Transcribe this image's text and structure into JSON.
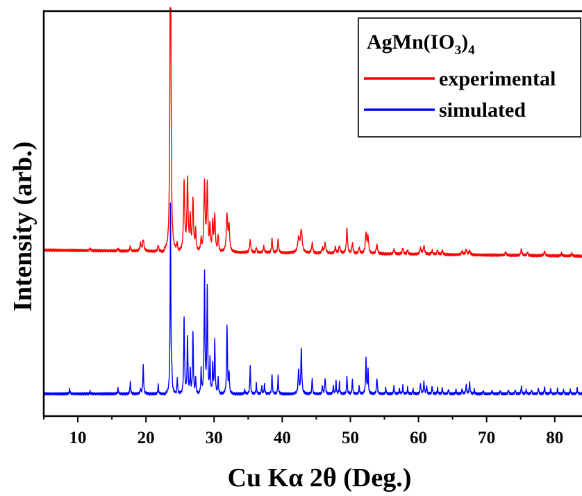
{
  "chart_data": {
    "type": "line",
    "title": "",
    "xlabel": "Cu Kα 2θ (Deg.)",
    "ylabel": "Intensity (arb.)",
    "xlim": [
      5,
      84
    ],
    "ylim": [
      0,
      1
    ],
    "xticks": [
      10,
      20,
      30,
      40,
      50,
      60,
      70,
      80
    ],
    "y_tick_labels": false,
    "grid": false,
    "legend": {
      "placement": "top-right",
      "title_main": "AgMn(IO",
      "title_sub1": "3",
      "title_mid": ")",
      "title_sub2": "4"
    },
    "series": [
      {
        "name": "experimental",
        "color": "#ff0000",
        "baseline": 0.41,
        "end_baseline": 0.395,
        "peaks": [
          [
            11.8,
            0.006,
            0.08
          ],
          [
            15.9,
            0.006,
            0.08
          ],
          [
            17.7,
            0.012,
            0.08
          ],
          [
            19.2,
            0.018,
            0.1
          ],
          [
            19.6,
            0.028,
            0.12
          ],
          [
            21.8,
            0.015,
            0.1
          ],
          [
            23.6,
            1.0,
            0.08
          ],
          [
            24.6,
            0.02,
            0.08
          ],
          [
            25.6,
            0.17,
            0.1
          ],
          [
            26.1,
            0.175,
            0.1
          ],
          [
            26.5,
            0.08,
            0.08
          ],
          [
            26.9,
            0.13,
            0.1
          ],
          [
            27.3,
            0.05,
            0.08
          ],
          [
            28.1,
            0.03,
            0.08
          ],
          [
            28.6,
            0.17,
            0.1
          ],
          [
            29.0,
            0.16,
            0.1
          ],
          [
            29.4,
            0.06,
            0.08
          ],
          [
            29.8,
            0.07,
            0.08
          ],
          [
            30.1,
            0.09,
            0.1
          ],
          [
            30.6,
            0.04,
            0.08
          ],
          [
            31.9,
            0.09,
            0.12
          ],
          [
            32.2,
            0.06,
            0.1
          ],
          [
            35.3,
            0.03,
            0.1
          ],
          [
            36.2,
            0.012,
            0.08
          ],
          [
            37.3,
            0.015,
            0.1
          ],
          [
            38.5,
            0.035,
            0.08
          ],
          [
            39.4,
            0.035,
            0.08
          ],
          [
            42.4,
            0.035,
            0.15
          ],
          [
            42.8,
            0.055,
            0.15
          ],
          [
            44.4,
            0.025,
            0.1
          ],
          [
            45.9,
            0.012,
            0.1
          ],
          [
            46.3,
            0.025,
            0.12
          ],
          [
            47.8,
            0.015,
            0.1
          ],
          [
            48.4,
            0.018,
            0.12
          ],
          [
            49.5,
            0.06,
            0.1
          ],
          [
            50.3,
            0.025,
            0.1
          ],
          [
            51.3,
            0.015,
            0.1
          ],
          [
            52.3,
            0.05,
            0.12
          ],
          [
            52.6,
            0.04,
            0.1
          ],
          [
            53.9,
            0.022,
            0.12
          ],
          [
            56.4,
            0.012,
            0.1
          ],
          [
            57.7,
            0.015,
            0.1
          ],
          [
            58.4,
            0.01,
            0.1
          ],
          [
            60.3,
            0.015,
            0.12
          ],
          [
            60.8,
            0.02,
            0.12
          ],
          [
            62.0,
            0.01,
            0.1
          ],
          [
            62.8,
            0.01,
            0.1
          ],
          [
            63.5,
            0.01,
            0.1
          ],
          [
            66.4,
            0.008,
            0.12
          ],
          [
            67.0,
            0.012,
            0.12
          ],
          [
            67.5,
            0.01,
            0.12
          ],
          [
            72.8,
            0.007,
            0.12
          ],
          [
            75.1,
            0.015,
            0.1
          ],
          [
            76.0,
            0.007,
            0.1
          ],
          [
            78.5,
            0.01,
            0.12
          ],
          [
            81.0,
            0.006,
            0.1
          ],
          [
            82.5,
            0.006,
            0.1
          ]
        ]
      },
      {
        "name": "simulated",
        "color": "#0000ff",
        "baseline": 0.055,
        "end_baseline": 0.055,
        "peaks": [
          [
            8.8,
            0.012,
            0.06
          ],
          [
            11.8,
            0.006,
            0.06
          ],
          [
            15.9,
            0.014,
            0.06
          ],
          [
            17.7,
            0.03,
            0.06
          ],
          [
            19.2,
            0.012,
            0.06
          ],
          [
            19.6,
            0.07,
            0.07
          ],
          [
            21.8,
            0.022,
            0.06
          ],
          [
            23.6,
            0.47,
            0.06
          ],
          [
            23.8,
            0.04,
            0.05
          ],
          [
            24.6,
            0.042,
            0.06
          ],
          [
            25.6,
            0.19,
            0.07
          ],
          [
            26.1,
            0.14,
            0.07
          ],
          [
            26.5,
            0.06,
            0.06
          ],
          [
            26.9,
            0.15,
            0.07
          ],
          [
            27.3,
            0.04,
            0.06
          ],
          [
            28.1,
            0.06,
            0.06
          ],
          [
            28.6,
            0.295,
            0.07
          ],
          [
            29.0,
            0.26,
            0.07
          ],
          [
            29.4,
            0.08,
            0.06
          ],
          [
            29.8,
            0.07,
            0.06
          ],
          [
            30.1,
            0.13,
            0.07
          ],
          [
            30.6,
            0.04,
            0.06
          ],
          [
            31.9,
            0.17,
            0.07
          ],
          [
            32.2,
            0.05,
            0.06
          ],
          [
            34.5,
            0.01,
            0.06
          ],
          [
            35.3,
            0.07,
            0.06
          ],
          [
            36.2,
            0.025,
            0.06
          ],
          [
            37.0,
            0.02,
            0.06
          ],
          [
            37.4,
            0.025,
            0.06
          ],
          [
            38.5,
            0.05,
            0.06
          ],
          [
            39.4,
            0.045,
            0.06
          ],
          [
            42.4,
            0.06,
            0.08
          ],
          [
            42.8,
            0.11,
            0.08
          ],
          [
            44.4,
            0.04,
            0.06
          ],
          [
            45.9,
            0.02,
            0.06
          ],
          [
            46.3,
            0.04,
            0.07
          ],
          [
            47.5,
            0.02,
            0.06
          ],
          [
            47.9,
            0.03,
            0.06
          ],
          [
            48.4,
            0.028,
            0.06
          ],
          [
            49.5,
            0.045,
            0.06
          ],
          [
            50.3,
            0.035,
            0.06
          ],
          [
            51.3,
            0.02,
            0.06
          ],
          [
            52.3,
            0.085,
            0.07
          ],
          [
            52.6,
            0.06,
            0.06
          ],
          [
            53.9,
            0.04,
            0.07
          ],
          [
            55.2,
            0.015,
            0.06
          ],
          [
            56.4,
            0.02,
            0.06
          ],
          [
            57.2,
            0.012,
            0.06
          ],
          [
            57.7,
            0.02,
            0.06
          ],
          [
            58.4,
            0.015,
            0.06
          ],
          [
            59.2,
            0.012,
            0.06
          ],
          [
            60.3,
            0.025,
            0.07
          ],
          [
            60.8,
            0.03,
            0.07
          ],
          [
            61.2,
            0.02,
            0.06
          ],
          [
            62.0,
            0.02,
            0.06
          ],
          [
            62.8,
            0.015,
            0.06
          ],
          [
            63.5,
            0.015,
            0.06
          ],
          [
            64.4,
            0.012,
            0.06
          ],
          [
            65.5,
            0.01,
            0.06
          ],
          [
            66.4,
            0.012,
            0.06
          ],
          [
            67.0,
            0.022,
            0.07
          ],
          [
            67.5,
            0.028,
            0.07
          ],
          [
            68.2,
            0.01,
            0.06
          ],
          [
            69.5,
            0.008,
            0.06
          ],
          [
            70.8,
            0.008,
            0.06
          ],
          [
            72.0,
            0.008,
            0.06
          ],
          [
            73.2,
            0.01,
            0.06
          ],
          [
            74.2,
            0.01,
            0.06
          ],
          [
            75.1,
            0.02,
            0.06
          ],
          [
            75.8,
            0.01,
            0.06
          ],
          [
            76.6,
            0.01,
            0.06
          ],
          [
            77.6,
            0.015,
            0.06
          ],
          [
            78.5,
            0.018,
            0.06
          ],
          [
            79.4,
            0.012,
            0.06
          ],
          [
            80.4,
            0.012,
            0.06
          ],
          [
            81.3,
            0.01,
            0.06
          ],
          [
            82.3,
            0.01,
            0.06
          ],
          [
            83.3,
            0.015,
            0.06
          ]
        ]
      }
    ]
  }
}
